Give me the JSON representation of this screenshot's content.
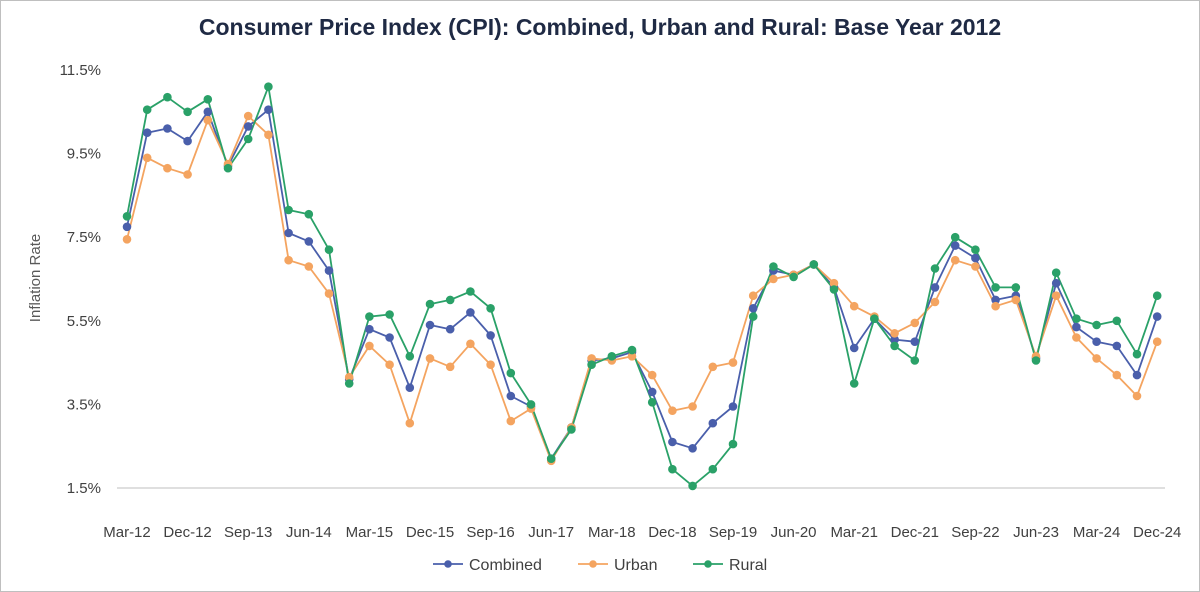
{
  "chart_data": {
    "type": "line",
    "title": "Consumer Price Index (CPI): Combined, Urban and Rural: Base Year 2012",
    "ylabel": "Inflation Rate",
    "xlabel": "",
    "ylim": [
      1.5,
      11.5
    ],
    "y_ticks": [
      "1.5%",
      "3.5%",
      "5.5%",
      "7.5%",
      "9.5%",
      "11.5%"
    ],
    "y_tick_values": [
      1.5,
      3.5,
      5.5,
      7.5,
      9.5,
      11.5
    ],
    "x_tick_labels": [
      "Mar-12",
      "Dec-12",
      "Sep-13",
      "Jun-14",
      "Mar-15",
      "Dec-15",
      "Sep-16",
      "Jun-17",
      "Mar-18",
      "Dec-18",
      "Sep-19",
      "Jun-20",
      "Mar-21",
      "Dec-21",
      "Sep-22",
      "Jun-23",
      "Mar-24",
      "Dec-24"
    ],
    "x_tick_indices": [
      0,
      3,
      6,
      9,
      12,
      15,
      18,
      21,
      24,
      27,
      30,
      33,
      36,
      39,
      42,
      45,
      48,
      51
    ],
    "grid": false,
    "legend_position": "bottom",
    "series": [
      {
        "name": "Combined",
        "color": "#4a5fab",
        "values": [
          7.75,
          10.0,
          10.1,
          9.8,
          10.5,
          9.2,
          10.15,
          10.55,
          7.6,
          7.4,
          6.7,
          4.1,
          5.3,
          5.1,
          3.9,
          5.4,
          5.3,
          5.7,
          5.15,
          3.7,
          3.45,
          2.2,
          2.95,
          4.55,
          4.6,
          4.75,
          3.8,
          2.6,
          2.45,
          3.05,
          3.45,
          5.8,
          6.7,
          6.6,
          6.85,
          6.3,
          4.85,
          5.55,
          5.05,
          5.0,
          6.3,
          7.3,
          7.0,
          6.0,
          6.1,
          4.6,
          6.4,
          5.35,
          5.0,
          4.9,
          4.2,
          5.6
        ]
      },
      {
        "name": "Urban",
        "color": "#f4a460",
        "values": [
          7.45,
          9.4,
          9.15,
          9.0,
          10.3,
          9.25,
          10.4,
          9.95,
          6.95,
          6.8,
          6.15,
          4.15,
          4.9,
          4.45,
          3.05,
          4.6,
          4.4,
          4.95,
          4.45,
          3.1,
          3.4,
          2.15,
          2.95,
          4.6,
          4.55,
          4.65,
          4.2,
          3.35,
          3.45,
          4.4,
          4.5,
          6.1,
          6.5,
          6.6,
          6.85,
          6.4,
          5.85,
          5.6,
          5.2,
          5.45,
          5.95,
          6.95,
          6.8,
          5.85,
          6.0,
          4.65,
          6.1,
          5.1,
          4.6,
          4.2,
          3.7,
          5.0
        ]
      },
      {
        "name": "Rural",
        "color": "#2aa168",
        "values": [
          8.0,
          10.55,
          10.85,
          10.5,
          10.8,
          9.15,
          9.85,
          11.1,
          8.15,
          8.05,
          7.2,
          4.0,
          5.6,
          5.65,
          4.65,
          5.9,
          6.0,
          6.2,
          5.8,
          4.25,
          3.5,
          2.2,
          2.9,
          4.45,
          4.65,
          4.8,
          3.55,
          1.95,
          1.55,
          1.95,
          2.55,
          5.6,
          6.8,
          6.55,
          6.85,
          6.25,
          4.0,
          5.55,
          4.9,
          4.55,
          6.75,
          7.5,
          7.2,
          6.3,
          6.3,
          4.55,
          6.65,
          5.55,
          5.4,
          5.5,
          4.7,
          6.1
        ]
      }
    ]
  }
}
